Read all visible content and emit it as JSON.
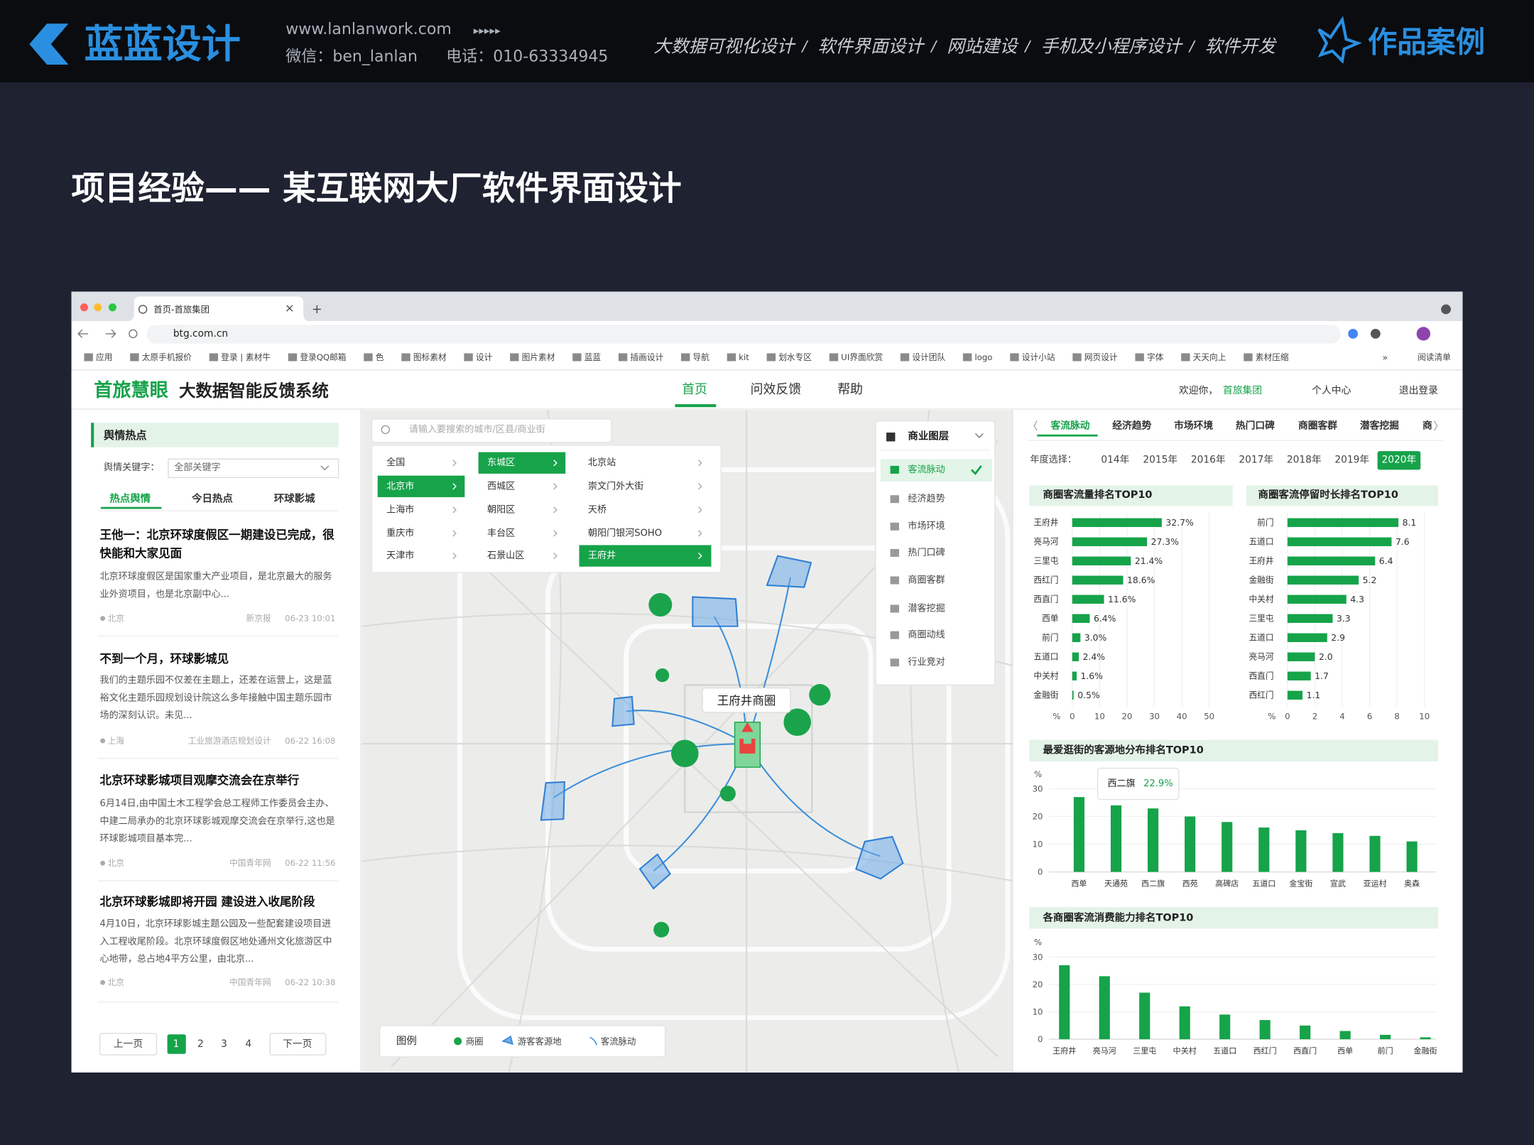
{
  "header": {
    "brand": "蓝蓝设计",
    "site": "www.lanlanwork.com",
    "arrows": "▸▸▸▸▸",
    "wechat": "微信：ben_lanlan",
    "phone": "电话：010-63334945",
    "services": [
      "大数据可视化设计",
      "软件界面设计",
      "网站建设",
      "手机及小程序设计",
      "软件开发"
    ],
    "separator": "/",
    "badge": "作品案例"
  },
  "slide_title": "项目经验—— 某互联网大厂软件界面设计",
  "browser": {
    "tab": "首页-首旅集团",
    "url": "btg.com.cn",
    "bookmarks": [
      "应用",
      "太原手机报价",
      "登录 | 素材牛",
      "登录QQ邮箱",
      "色",
      "图标素材",
      "设计",
      "图片素材",
      "蓝蓝",
      "插画设计",
      "导航",
      "kit",
      "划水专区",
      "UI界面欣赏",
      "设计团队",
      "logo",
      "设计小站",
      "网页设计",
      "字体",
      "天天向上",
      "素材压缩"
    ],
    "more": "»",
    "reading_list": "阅读清单"
  },
  "app": {
    "logo": "首旅慧眼",
    "system": "大数据智能反馈系统",
    "nav": [
      "首页",
      "问效反馈",
      "帮助"
    ],
    "welcome": "欢迎你，",
    "user": "首旅集团",
    "personal": "个人中心",
    "logout": "退出登录"
  },
  "opinion": {
    "title": "舆情热点",
    "keyword_label": "舆情关键字：",
    "keyword_value": "全部关键字",
    "tabs": [
      "热点舆情",
      "今日热点",
      "环球影城"
    ],
    "news": [
      {
        "title": "王他一：北京环球度假区一期建设已完成，很快能和大家见面",
        "summary": "北京环球度假区是国家重大产业项目，是北京最大的服务业外资项目，也是北京副中心...",
        "location": "北京",
        "source": "新京报",
        "time": "06-23 10:01"
      },
      {
        "title": "不到一个月，环球影城见",
        "summary": "我们的主题乐园不仅差在主题上，还差在运营上，这是蓝裕文化主题乐园规划设计院这么多年接触中国主题乐园市场的深刻认识。未见...",
        "location": "上海",
        "source": "工业旅游酒店规划设计",
        "time": "06-22 16:08"
      },
      {
        "title": "北京环球影城项目观摩交流会在京举行",
        "summary": "6月14日,由中国土木工程学会总工程师工作委员会主办、中建二局承办的北京环球影城观摩交流会在京举行,这也是环球影城项目基本完...",
        "location": "北京",
        "source": "中国青年网",
        "time": "06-22 11:56"
      },
      {
        "title": "北京环球影城即将开园 建设进入收尾阶段",
        "summary": "4月10日，北京环球影城主题公园及一些配套建设项目进入工程收尾阶段。北京环球度假区地处通州文化旅游区中心地带，总占地4平方公里，由北京...",
        "location": "北京",
        "source": "中国青年网",
        "time": "06-22 10:38"
      }
    ],
    "prev": "上一页",
    "pages": [
      1,
      2,
      3,
      4
    ],
    "next": "下一页"
  },
  "map": {
    "search_placeholder": "请输入要搜索的城市/区县/商业街",
    "regions": [
      [
        "全国",
        "北京市",
        "上海市",
        "重庆市",
        "天津市"
      ],
      [
        "东城区",
        "西城区",
        "朝阳区",
        "丰台区",
        "石景山区"
      ],
      [
        "北京站",
        "崇文门外大街",
        "天桥",
        "朝阳门银河SOHO",
        "王府井"
      ]
    ],
    "layer_title": "商业图层",
    "layers": [
      "客流脉动",
      "经济趋势",
      "市场环境",
      "热门口碑",
      "商圈客群",
      "潜客挖掘",
      "商圈动线",
      "行业竞对"
    ],
    "callout": "王府井商圈",
    "legend_title": "图例",
    "legend": [
      "商圈",
      "游客客源地",
      "客流脉动"
    ]
  },
  "analysis": {
    "tabs": [
      "客流脉动",
      "经济趋势",
      "市场环境",
      "热门口碑",
      "商圈客群",
      "潜客挖掘",
      "商"
    ],
    "year_label": "年度选择：",
    "years": [
      "014年",
      "2015年",
      "2016年",
      "2017年",
      "2018年",
      "2019年",
      "2020年"
    ]
  },
  "chart_data": [
    {
      "type": "hbar",
      "title": "商圈客流量排名TOP10",
      "categories": [
        "王府井",
        "亮马河",
        "三里屯",
        "西红门",
        "西直门",
        "西单",
        "前门",
        "五道口",
        "中关村",
        "金融街"
      ],
      "values": [
        32.7,
        27.3,
        21.4,
        18.6,
        11.6,
        6.4,
        3.0,
        2.4,
        1.6,
        0.5
      ],
      "value_labels": [
        "32.7%",
        "27.3%",
        "21.4%",
        "18.6%",
        "11.6%",
        "6.4%",
        "3.0%",
        "2.4%",
        "1.6%",
        "0.5%"
      ],
      "color": "#16a34a",
      "unit": "%",
      "xlim": [
        0,
        50
      ],
      "xticks": [
        0,
        10,
        20,
        30,
        40,
        50
      ]
    },
    {
      "type": "hbar",
      "title": "商圈客流停留时长排名TOP10",
      "categories": [
        "前门",
        "五道口",
        "王府井",
        "金融街",
        "中关村",
        "三里屯",
        "五道口",
        "亮马河",
        "西直门",
        "西红门"
      ],
      "values": [
        8.1,
        7.6,
        6.4,
        5.2,
        4.3,
        3.3,
        2.9,
        2.0,
        1.7,
        1.1
      ],
      "value_labels": [
        "8.1",
        "7.6",
        "6.4",
        "5.2",
        "4.3",
        "3.3",
        "2.9",
        "2.0",
        "1.7",
        "1.1"
      ],
      "color": "#16a34a",
      "unit": "%",
      "xlim": [
        0,
        10
      ],
      "xticks": [
        0,
        2,
        4,
        6,
        8,
        10
      ]
    },
    {
      "type": "bar",
      "title": "最爱逛街的客源地分布排名TOP10",
      "categories": [
        "西单",
        "天通苑",
        "西二旗",
        "西苑",
        "高碑店",
        "五道口",
        "金宝街",
        "宣武",
        "亚运村",
        "奥森"
      ],
      "values": [
        27,
        24,
        22.9,
        20,
        18,
        16,
        15,
        14,
        13,
        11
      ],
      "color": "#16a34a",
      "unit": "%",
      "ylim": [
        0,
        30
      ],
      "yticks": [
        0,
        10,
        20,
        30
      ],
      "tooltip": {
        "category": "西二旗",
        "value_label": "22.9%"
      }
    },
    {
      "type": "bar",
      "title": "各商圈客流消费能力排名TOP10",
      "categories": [
        "王府井",
        "亮马河",
        "三里屯",
        "中关村",
        "五道口",
        "西红门",
        "西直门",
        "西单",
        "前门",
        "金融街"
      ],
      "values": [
        27,
        23,
        17,
        12,
        9,
        7,
        5,
        3,
        1.6,
        0.7
      ],
      "color": "#16a34a",
      "unit": "%",
      "ylim": [
        0,
        30
      ],
      "yticks": [
        0,
        10,
        20,
        30
      ]
    }
  ]
}
